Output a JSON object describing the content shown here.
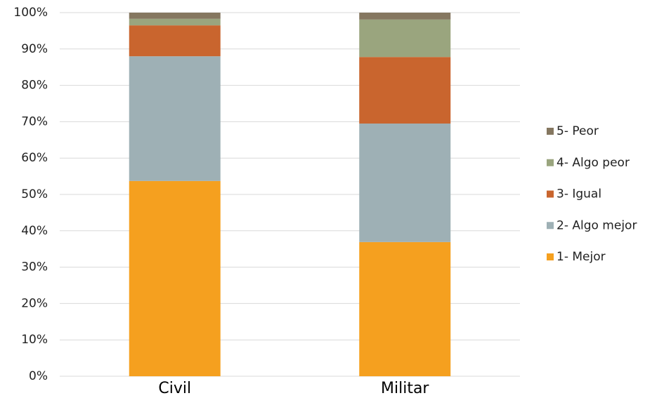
{
  "chart_data": {
    "type": "stacked_bar",
    "categories": [
      "Civil",
      "Militar"
    ],
    "series": [
      {
        "name": "1- Mejor",
        "color": "#f5a01f",
        "values": [
          53.7,
          36.9
        ]
      },
      {
        "name": "2- Algo mejor",
        "color": "#9eb0b5",
        "values": [
          34.3,
          32.6
        ]
      },
      {
        "name": "3- Igual",
        "color": "#c9652e",
        "values": [
          8.5,
          18.3
        ]
      },
      {
        "name": "4- Algo peor",
        "color": "#9aa57e",
        "values": [
          1.8,
          10.3
        ]
      },
      {
        "name": "5- Peor",
        "color": "#857760",
        "values": [
          1.7,
          1.9
        ]
      }
    ],
    "ylim": [
      0,
      100
    ],
    "yticks": [
      {
        "value": 0,
        "label": "0%"
      },
      {
        "value": 10,
        "label": "10%"
      },
      {
        "value": 20,
        "label": "20%"
      },
      {
        "value": 30,
        "label": "30%"
      },
      {
        "value": 40,
        "label": "40%"
      },
      {
        "value": 50,
        "label": "50%"
      },
      {
        "value": 60,
        "label": "60%"
      },
      {
        "value": 70,
        "label": "70%"
      },
      {
        "value": 80,
        "label": "80%"
      },
      {
        "value": 90,
        "label": "90%"
      },
      {
        "value": 100,
        "label": "100%"
      }
    ],
    "grid": true,
    "legend": "right"
  }
}
